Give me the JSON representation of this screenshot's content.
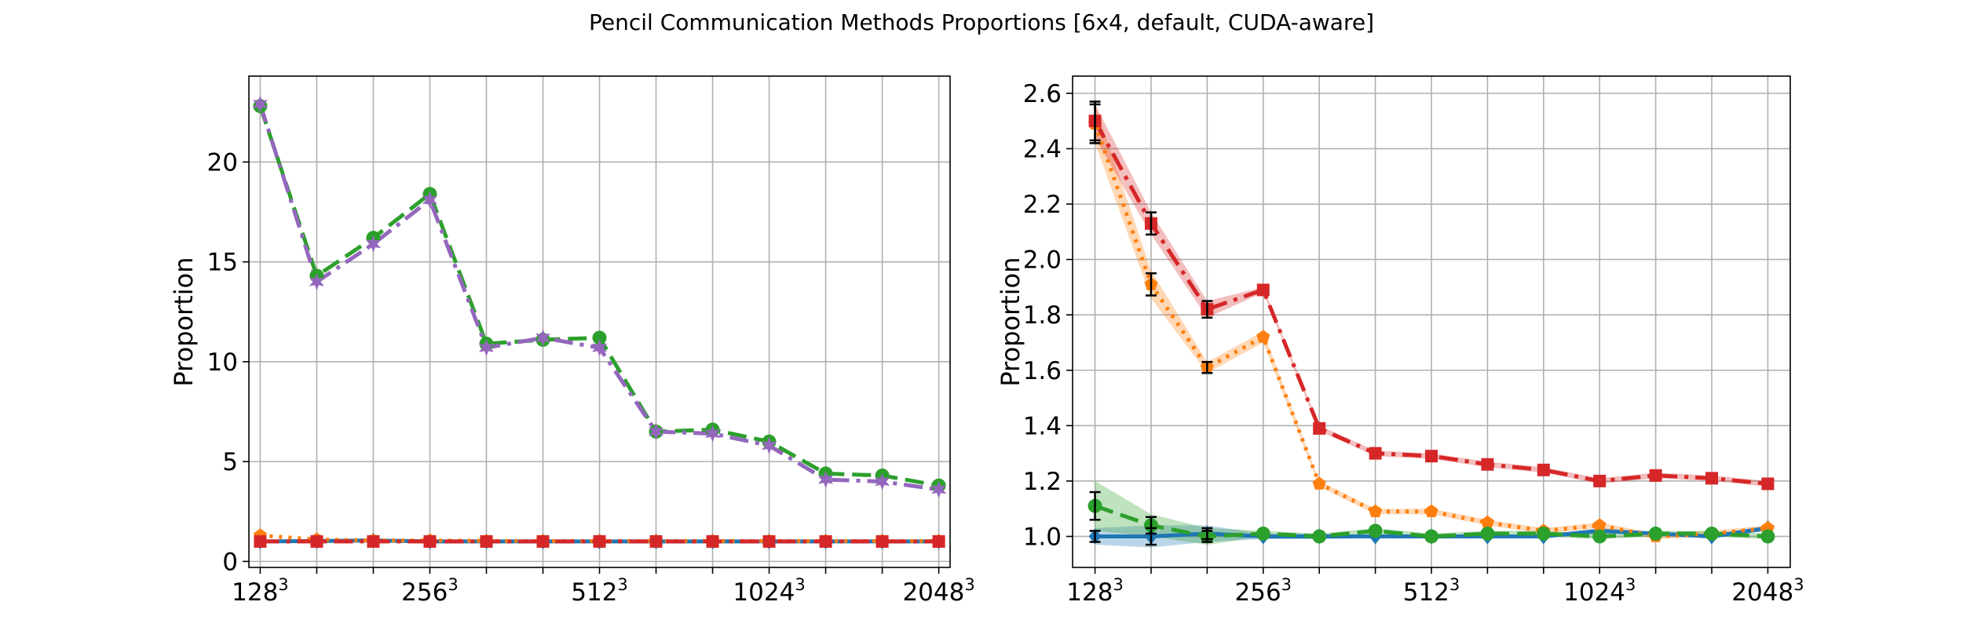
{
  "chart_data": {
    "title": "Pencil Communication Methods Proportions [6x4, default, CUDA-aware]",
    "charts": [
      {
        "type": "line",
        "xlabel": "",
        "ylabel": "Proportion",
        "xlim": [
          0.8,
          13.2
        ],
        "ylim": [
          -0.3,
          24.3
        ],
        "grid": true,
        "x": [
          1,
          2,
          3,
          4,
          5,
          6,
          7,
          8,
          9,
          10,
          11,
          12,
          13
        ],
        "xticks": [
          {
            "pos": 1,
            "base": "128",
            "exp": "3"
          },
          {
            "pos": 4,
            "base": "256",
            "exp": "3"
          },
          {
            "pos": 7,
            "base": "512",
            "exp": "3"
          },
          {
            "pos": 10,
            "base": "1024",
            "exp": "3"
          },
          {
            "pos": 13,
            "base": "2048",
            "exp": "3"
          }
        ],
        "yticks": [
          0,
          5,
          10,
          15,
          20
        ],
        "series": [
          {
            "name": "blue",
            "color": "#1f77b4",
            "style": "solid",
            "marker": "diamond",
            "values": [
              1.0,
              1.02,
              1.05,
              1.0,
              1.0,
              1.0,
              1.0,
              1.0,
              1.0,
              1.0,
              1.0,
              1.0,
              1.0
            ]
          },
          {
            "name": "orange",
            "color": "#ff7f0e",
            "style": "dotted",
            "marker": "pentagon",
            "values": [
              1.3,
              1.1,
              1.05,
              1.05,
              1.03,
              1.02,
              1.02,
              1.02,
              1.02,
              1.02,
              1.02,
              1.02,
              1.02
            ]
          },
          {
            "name": "green",
            "color": "#2ca02c",
            "style": "dashed",
            "marker": "circle",
            "values": [
              22.8,
              14.3,
              16.2,
              18.4,
              10.9,
              11.1,
              11.2,
              6.5,
              6.6,
              6.0,
              4.4,
              4.3,
              3.8
            ]
          },
          {
            "name": "red",
            "color": "#d62728",
            "style": "dashdot",
            "marker": "square",
            "values": [
              1.0,
              1.0,
              1.0,
              1.0,
              1.0,
              1.0,
              1.0,
              1.0,
              1.0,
              1.0,
              1.0,
              1.0,
              1.0
            ]
          },
          {
            "name": "purple",
            "color": "#9467bd",
            "style": "dashdot",
            "marker": "star",
            "values": [
              22.9,
              14.0,
              15.9,
              18.1,
              10.7,
              11.2,
              10.7,
              6.5,
              6.4,
              5.8,
              4.1,
              4.0,
              3.6
            ]
          }
        ]
      },
      {
        "type": "line",
        "xlabel": "",
        "ylabel": "Proportion",
        "xlim": [
          0.6,
          13.4
        ],
        "ylim": [
          0.888,
          2.662
        ],
        "grid": true,
        "x": [
          1,
          2,
          3,
          4,
          5,
          6,
          7,
          8,
          9,
          10,
          11,
          12,
          13
        ],
        "xticks": [
          {
            "pos": 1,
            "base": "128",
            "exp": "3"
          },
          {
            "pos": 4,
            "base": "256",
            "exp": "3"
          },
          {
            "pos": 7,
            "base": "512",
            "exp": "3"
          },
          {
            "pos": 10,
            "base": "1024",
            "exp": "3"
          },
          {
            "pos": 13,
            "base": "2048",
            "exp": "3"
          }
        ],
        "yticks": [
          1.0,
          1.2,
          1.4,
          1.6,
          1.8,
          2.0,
          2.2,
          2.4,
          2.6
        ],
        "series": [
          {
            "name": "blue",
            "color": "#1f77b4",
            "style": "solid",
            "marker": "diamond",
            "values": [
              1.0,
              1.0,
              1.01,
              1.0,
              1.0,
              1.0,
              1.0,
              1.0,
              1.0,
              1.02,
              1.01,
              1.0,
              1.03
            ],
            "band": [
              0.03,
              0.04,
              0.03,
              0.01,
              0.01,
              0.005,
              0.005,
              0.005,
              0.005,
              0.01,
              0.005,
              0.005,
              0.01
            ],
            "errors": [
              0.02,
              0.03,
              0.02,
              0.0,
              0.0,
              0.0,
              0.0,
              0.0,
              0.0,
              0.0,
              0.0,
              0.0,
              0.0
            ]
          },
          {
            "name": "orange",
            "color": "#ff7f0e",
            "style": "dotted",
            "marker": "pentagon",
            "values": [
              2.49,
              1.91,
              1.61,
              1.72,
              1.19,
              1.09,
              1.09,
              1.05,
              1.02,
              1.04,
              1.0,
              1.01,
              1.03
            ],
            "band": [
              0.07,
              0.05,
              0.02,
              0.02,
              0.01,
              0.01,
              0.01,
              0.01,
              0.01,
              0.01,
              0.01,
              0.01,
              0.01
            ],
            "errors": [
              0.07,
              0.04,
              0.02,
              0.0,
              0.0,
              0.0,
              0.0,
              0.0,
              0.0,
              0.0,
              0.0,
              0.0,
              0.0
            ]
          },
          {
            "name": "green",
            "color": "#2ca02c",
            "style": "dashed",
            "marker": "circle",
            "values": [
              1.11,
              1.04,
              1.0,
              1.01,
              1.0,
              1.02,
              1.0,
              1.01,
              1.01,
              1.0,
              1.01,
              1.01,
              1.0
            ],
            "band": [
              0.09,
              0.04,
              0.03,
              0.01,
              0.01,
              0.01,
              0.01,
              0.01,
              0.01,
              0.01,
              0.01,
              0.01,
              0.01
            ],
            "errors": [
              0.05,
              0.03,
              0.02,
              0.0,
              0.0,
              0.0,
              0.0,
              0.0,
              0.0,
              0.0,
              0.0,
              0.0,
              0.0
            ]
          },
          {
            "name": "red",
            "color": "#d62728",
            "style": "dashdot",
            "marker": "square",
            "values": [
              2.5,
              2.13,
              1.82,
              1.89,
              1.39,
              1.3,
              1.29,
              1.26,
              1.24,
              1.2,
              1.22,
              1.21,
              1.19
            ],
            "band": [
              0.06,
              0.04,
              0.03,
              0.01,
              0.01,
              0.01,
              0.01,
              0.01,
              0.01,
              0.01,
              0.01,
              0.01,
              0.01
            ],
            "errors": [
              0.07,
              0.04,
              0.03,
              0.0,
              0.0,
              0.0,
              0.0,
              0.0,
              0.0,
              0.0,
              0.0,
              0.0,
              0.0
            ]
          }
        ]
      }
    ]
  }
}
